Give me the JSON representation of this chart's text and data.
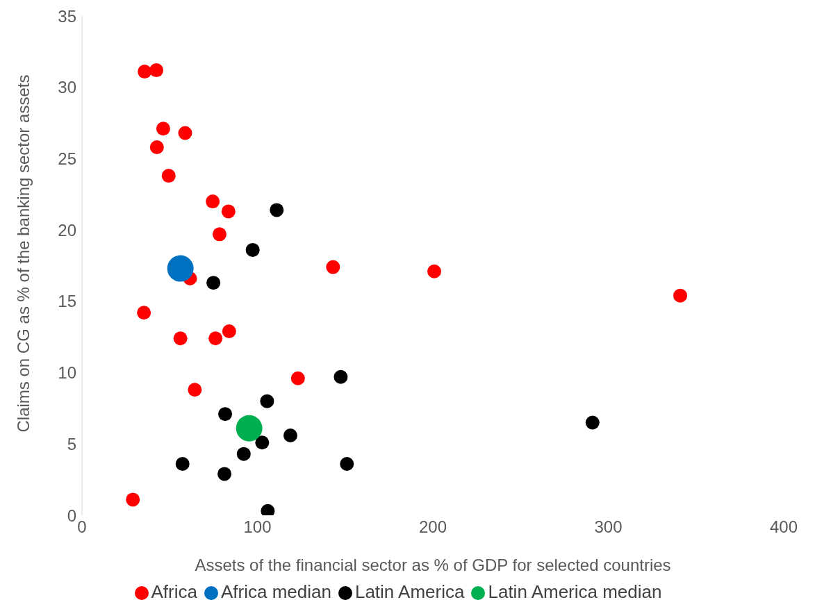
{
  "chart_data": {
    "type": "scatter",
    "xlabel": "Assets of the financial sector as % of GDP for selected countries",
    "ylabel": "Claims on CG as % of the banking sector assets",
    "xlim": [
      0,
      400
    ],
    "xticks": [
      0,
      100,
      200,
      300,
      400
    ],
    "ylim": [
      0,
      35
    ],
    "yticks": [
      0,
      5,
      10,
      15,
      20,
      25,
      30,
      35
    ],
    "grid": false,
    "legend": "bottom",
    "marker": "circle",
    "series": [
      {
        "name": "Africa",
        "color": "#ff0000",
        "x": [
          35.7,
          42.4,
          46.3,
          58.8,
          42.7,
          49.4,
          74.5,
          83.5,
          78.4,
          61.6,
          35.3,
          56.1,
          76.1,
          83.9,
          64.3,
          123.1,
          143.1,
          200.8,
          341,
          29
        ],
        "values": [
          31.1,
          31.2,
          27.1,
          26.8,
          25.8,
          23.8,
          22,
          21.3,
          19.7,
          16.6,
          14.2,
          12.4,
          12.4,
          12.9,
          8.8,
          9.6,
          17.4,
          17.1,
          15.4,
          1.1
        ]
      },
      {
        "name": "Latin America",
        "color": "#000000",
        "x": [
          111,
          97.3,
          74.9,
          147.5,
          105.5,
          81.6,
          118.8,
          102.7,
          92.2,
          57.3,
          151,
          81.2,
          105.9,
          291
        ],
        "values": [
          21.4,
          18.6,
          16.3,
          9.7,
          8,
          7.1,
          5.6,
          5.1,
          4.3,
          3.6,
          3.6,
          2.9,
          0.3,
          6.5
        ]
      },
      {
        "name": "Africa median",
        "color": "#0070c0",
        "x": [
          56.1
        ],
        "values": [
          17.3
        ]
      },
      {
        "name": "Latin America median",
        "color": "#00b050",
        "x": [
          95.3
        ],
        "values": [
          6.1
        ]
      }
    ]
  }
}
